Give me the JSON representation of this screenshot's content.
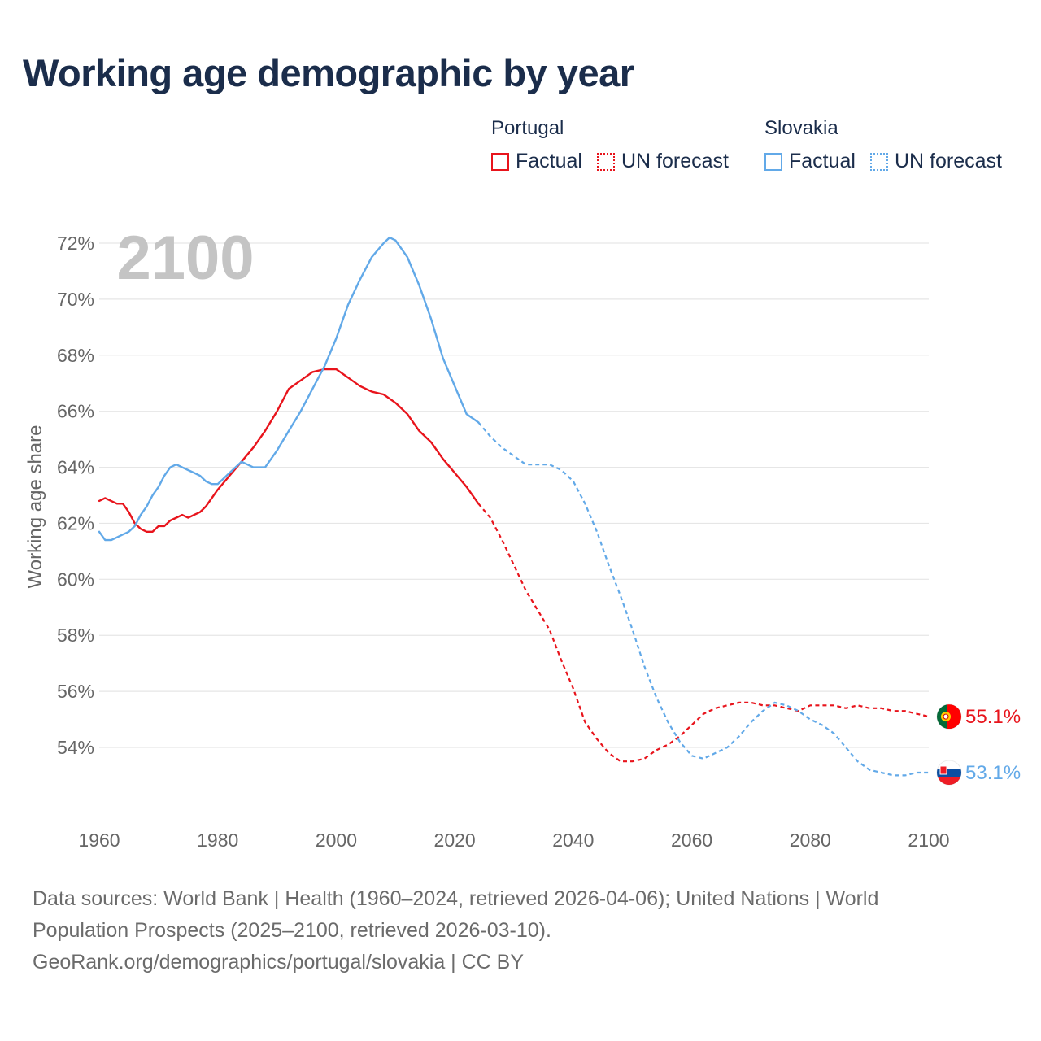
{
  "title": "Working age demographic by year",
  "legend": {
    "groups": [
      {
        "name": "Portugal",
        "factual_label": "Factual",
        "forecast_label": "UN forecast",
        "color": "#e8141c"
      },
      {
        "name": "Slovakia",
        "factual_label": "Factual",
        "forecast_label": "UN forecast",
        "color": "#62a9e8"
      }
    ]
  },
  "chart_data": {
    "type": "line",
    "title": "Working age demographic by year",
    "xlabel": "",
    "ylabel": "Working age share",
    "year_label": "2100",
    "xlim": [
      1960,
      2100
    ],
    "ylim": [
      52,
      72.5
    ],
    "xticks": [
      1960,
      1980,
      2000,
      2020,
      2040,
      2060,
      2080,
      2100
    ],
    "yticks": [
      54,
      56,
      58,
      60,
      62,
      64,
      66,
      68,
      70,
      72
    ],
    "ytick_labels": [
      "54%",
      "56%",
      "58%",
      "60%",
      "62%",
      "64%",
      "66%",
      "68%",
      "70%",
      "72%"
    ],
    "factual_range": [
      1960,
      2024
    ],
    "forecast_range": [
      2024,
      2100
    ],
    "series": [
      {
        "name": "Portugal",
        "color": "#e8141c",
        "end_label": "55.1%",
        "x": [
          1960,
          1961,
          1962,
          1963,
          1964,
          1965,
          1966,
          1967,
          1968,
          1969,
          1970,
          1971,
          1972,
          1973,
          1974,
          1975,
          1976,
          1977,
          1978,
          1979,
          1980,
          1982,
          1984,
          1986,
          1988,
          1990,
          1992,
          1994,
          1996,
          1998,
          2000,
          2002,
          2004,
          2006,
          2008,
          2010,
          2012,
          2014,
          2016,
          2018,
          2020,
          2022,
          2024,
          2026,
          2028,
          2030,
          2032,
          2034,
          2036,
          2038,
          2040,
          2042,
          2044,
          2046,
          2048,
          2050,
          2052,
          2054,
          2056,
          2058,
          2060,
          2062,
          2064,
          2066,
          2068,
          2070,
          2072,
          2074,
          2076,
          2078,
          2080,
          2082,
          2084,
          2086,
          2088,
          2090,
          2092,
          2094,
          2096,
          2098,
          2100
        ],
        "values": [
          62.8,
          62.9,
          62.8,
          62.7,
          62.7,
          62.4,
          62.0,
          61.8,
          61.7,
          61.7,
          61.9,
          61.9,
          62.1,
          62.2,
          62.3,
          62.2,
          62.3,
          62.4,
          62.6,
          62.9,
          63.2,
          63.7,
          64.2,
          64.7,
          65.3,
          66.0,
          66.8,
          67.1,
          67.4,
          67.5,
          67.5,
          67.2,
          66.9,
          66.7,
          66.6,
          66.3,
          65.9,
          65.3,
          64.9,
          64.3,
          63.8,
          63.3,
          62.7,
          62.2,
          61.4,
          60.5,
          59.6,
          58.9,
          58.2,
          57.1,
          56.1,
          54.9,
          54.3,
          53.8,
          53.5,
          53.5,
          53.6,
          53.9,
          54.1,
          54.4,
          54.8,
          55.2,
          55.4,
          55.5,
          55.6,
          55.6,
          55.5,
          55.5,
          55.4,
          55.3,
          55.5,
          55.5,
          55.5,
          55.4,
          55.5,
          55.4,
          55.4,
          55.3,
          55.3,
          55.2,
          55.1
        ]
      },
      {
        "name": "Slovakia",
        "color": "#62a9e8",
        "end_label": "53.1%",
        "x": [
          1960,
          1961,
          1962,
          1963,
          1964,
          1965,
          1966,
          1967,
          1968,
          1969,
          1970,
          1971,
          1972,
          1973,
          1974,
          1975,
          1976,
          1977,
          1978,
          1979,
          1980,
          1982,
          1984,
          1986,
          1988,
          1990,
          1992,
          1994,
          1996,
          1998,
          2000,
          2002,
          2004,
          2006,
          2008,
          2009,
          2010,
          2012,
          2014,
          2016,
          2018,
          2020,
          2022,
          2024,
          2026,
          2028,
          2030,
          2032,
          2034,
          2036,
          2038,
          2040,
          2042,
          2044,
          2046,
          2048,
          2050,
          2052,
          2054,
          2056,
          2058,
          2060,
          2062,
          2064,
          2066,
          2068,
          2070,
          2072,
          2074,
          2076,
          2078,
          2080,
          2082,
          2084,
          2086,
          2088,
          2090,
          2092,
          2094,
          2096,
          2098,
          2100
        ],
        "values": [
          61.7,
          61.4,
          61.4,
          61.5,
          61.6,
          61.7,
          61.9,
          62.3,
          62.6,
          63.0,
          63.3,
          63.7,
          64.0,
          64.1,
          64.0,
          63.9,
          63.8,
          63.7,
          63.5,
          63.4,
          63.4,
          63.8,
          64.2,
          64.0,
          64.0,
          64.6,
          65.3,
          66.0,
          66.8,
          67.6,
          68.6,
          69.8,
          70.7,
          71.5,
          72.0,
          72.2,
          72.1,
          71.5,
          70.5,
          69.3,
          67.9,
          66.9,
          65.9,
          65.6,
          65.1,
          64.7,
          64.4,
          64.1,
          64.1,
          64.1,
          63.9,
          63.5,
          62.7,
          61.7,
          60.5,
          59.4,
          58.2,
          56.9,
          55.8,
          54.9,
          54.2,
          53.7,
          53.6,
          53.8,
          54.0,
          54.4,
          54.9,
          55.3,
          55.6,
          55.5,
          55.3,
          55.0,
          54.8,
          54.5,
          54.0,
          53.5,
          53.2,
          53.1,
          53.0,
          53.0,
          53.1,
          53.1
        ]
      }
    ]
  },
  "footer": {
    "line1": "Data sources: World Bank | Health (1960–2024, retrieved 2026-04-06); United Nations | World",
    "line2": "Population Prospects (2025–2100, retrieved 2026-03-10).",
    "line3": "GeoRank.org/demographics/portugal/slovakia | CC BY"
  }
}
